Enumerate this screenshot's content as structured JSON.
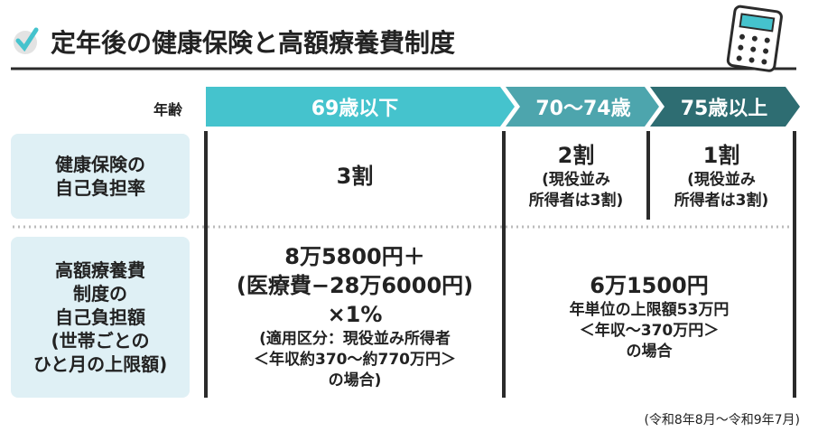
{
  "title": "定年後の健康保険と高額療養費制度",
  "header": {
    "label": "年齢",
    "ages": [
      "69歳以下",
      "70〜74歳",
      "75歳以上"
    ]
  },
  "rows": [
    {
      "label": [
        "健康保険の",
        "自己負担率"
      ],
      "cells": [
        [
          "3割"
        ],
        [
          "2割",
          "(現役並み",
          "所得者は3割)"
        ],
        [
          "1割",
          "(現役並み",
          "所得者は3割)"
        ]
      ]
    },
    {
      "label": [
        "高額療養費",
        "制度の",
        "自己負担額",
        "(世帯ごとの",
        "ひと月の上限額)"
      ],
      "cells": [
        [
          "8万5800円＋",
          "(医療費−28万6000円)",
          "×1%",
          "(適用区分：現役並み所得者",
          "＜年収約370〜約770万円＞",
          "の場合)"
        ],
        [
          "6万1500円",
          "年単位の上限額53万円",
          "＜年収〜370万円＞",
          "の場合"
        ]
      ]
    }
  ],
  "footnote": "(令和8年8月〜令和9年7月)"
}
